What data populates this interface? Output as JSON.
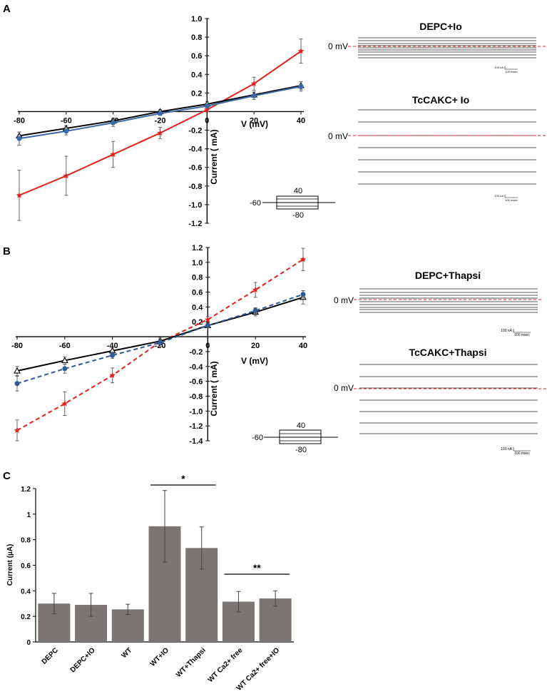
{
  "panels": {
    "A": {
      "label": "A",
      "xlabel": "V (mV)",
      "ylabel": "Current ( mA)",
      "xticks": [
        -80,
        -60,
        -40,
        -20,
        0,
        20,
        40
      ],
      "yticks": [
        -1.2,
        -1.0,
        -0.8,
        -0.6,
        -0.4,
        -0.2,
        0.2,
        0.4,
        0.6,
        0.8,
        1.0
      ],
      "protocol": {
        "top": "40",
        "left": "-60",
        "bottom": "-80"
      },
      "traces": [
        {
          "title": "DEPC+Io",
          "zero_label": "0 mV",
          "scale_na": "100 nA",
          "scale_ms": "100 msec"
        },
        {
          "title": "TcCAKC+ Io",
          "zero_label": "0 mV",
          "scale_na": "100 nA",
          "scale_ms": "100 msec"
        }
      ]
    },
    "B": {
      "label": "B",
      "xlabel": "V (mV)",
      "ylabel": "Current ( mA)",
      "xticks": [
        -80,
        -60,
        -40,
        -20,
        0,
        20,
        40
      ],
      "yticks": [
        -1.4,
        -1.2,
        -1.0,
        -0.8,
        -0.6,
        -0.4,
        -0.2,
        0.2,
        0.4,
        0.6,
        0.8,
        1.0,
        1.2
      ],
      "protocol": {
        "top": "40",
        "left": "-60",
        "bottom": "-80"
      },
      "traces": [
        {
          "title": "DEPC+Thapsi",
          "zero_label": "0 mV",
          "scale_na": "100 nA",
          "scale_ms": "100 msec"
        },
        {
          "title": "TcCAKC+Thapsi",
          "zero_label": "0 mV",
          "scale_na": "100 nA",
          "scale_ms": "100 msec"
        }
      ]
    },
    "C": {
      "label": "C",
      "ylabel": "Current (µA)",
      "yticks": [
        "0",
        "0.2",
        "0.4",
        "0.6",
        "0.8",
        "1",
        "1.2"
      ],
      "sig1": "*",
      "sig2": "**"
    }
  },
  "chart_data": [
    {
      "type": "line",
      "panel": "A",
      "xlabel": "V (mV)",
      "ylabel": "Current ( mA)",
      "xlim": [
        -80,
        40
      ],
      "ylim": [
        -1.2,
        1.0
      ],
      "x": [
        -80,
        -60,
        -40,
        -20,
        0,
        20,
        40
      ],
      "series": [
        {
          "values": [
            -0.9,
            -0.69,
            -0.46,
            -0.23,
            0.02,
            0.3,
            0.65
          ],
          "errors": [
            0.27,
            0.21,
            0.14,
            0.06,
            0.02,
            0.07,
            0.13
          ],
          "color": "#e3221c",
          "marker": "star",
          "dash": false
        },
        {
          "values": [
            -0.26,
            -0.18,
            -0.1,
            0.0,
            0.08,
            0.18,
            0.28
          ],
          "errors": [
            0.04,
            0.03,
            0.03,
            0.02,
            0.03,
            0.03,
            0.04
          ],
          "color": "#000000",
          "marker": "triangle-open",
          "dash": false
        },
        {
          "values": [
            -0.29,
            -0.21,
            -0.12,
            -0.02,
            0.06,
            0.17,
            0.27
          ],
          "errors": [
            0.07,
            0.04,
            0.04,
            0.02,
            0.02,
            0.04,
            0.05
          ],
          "color": "#3c6aa6",
          "marker": "circle",
          "dash": false
        }
      ]
    },
    {
      "type": "line",
      "panel": "B",
      "xlabel": "V (mV)",
      "ylabel": "Current ( mA)",
      "xlim": [
        -80,
        40
      ],
      "ylim": [
        -1.4,
        1.2
      ],
      "x": [
        -80,
        -60,
        -40,
        -20,
        0,
        20,
        40
      ],
      "series": [
        {
          "values": [
            -1.26,
            -0.9,
            -0.52,
            -0.07,
            0.23,
            0.63,
            1.04
          ],
          "errors": [
            0.14,
            0.16,
            0.1,
            0.06,
            0.04,
            0.1,
            0.15
          ],
          "color": "#e3221c",
          "marker": "star",
          "dash": true
        },
        {
          "values": [
            -0.46,
            -0.32,
            -0.19,
            -0.06,
            0.15,
            0.33,
            0.53
          ],
          "errors": [
            0.06,
            0.05,
            0.04,
            0.03,
            0.03,
            0.05,
            0.09
          ],
          "color": "#000000",
          "marker": "triangle-open",
          "dash": false
        },
        {
          "values": [
            -0.63,
            -0.43,
            -0.25,
            -0.08,
            0.15,
            0.35,
            0.57
          ],
          "errors": [
            0.1,
            0.06,
            0.04,
            0.03,
            0.03,
            0.04,
            0.05
          ],
          "color": "#2e5a96",
          "marker": "circle",
          "dash": true
        }
      ]
    },
    {
      "type": "bar",
      "panel": "C",
      "ylabel": "Current (µA)",
      "ylim": [
        0,
        1.2
      ],
      "categories": [
        "DEPC",
        "DEPC+IO",
        "WT",
        "WT+IO",
        "WT+Thapsi",
        "WT Ca2+ free",
        "WT Ca2+ free+IO"
      ],
      "values": [
        0.3,
        0.29,
        0.255,
        0.905,
        0.735,
        0.315,
        0.34
      ],
      "errors": [
        0.08,
        0.09,
        0.04,
        0.28,
        0.165,
        0.08,
        0.06
      ],
      "bar_color": "#7b7574",
      "significance": [
        {
          "label": "*",
          "from": "WT+IO",
          "to": "WT+Thapsi"
        },
        {
          "label": "**",
          "from": "WT Ca2+ free",
          "to": "WT Ca2+ free+IO"
        }
      ]
    }
  ]
}
